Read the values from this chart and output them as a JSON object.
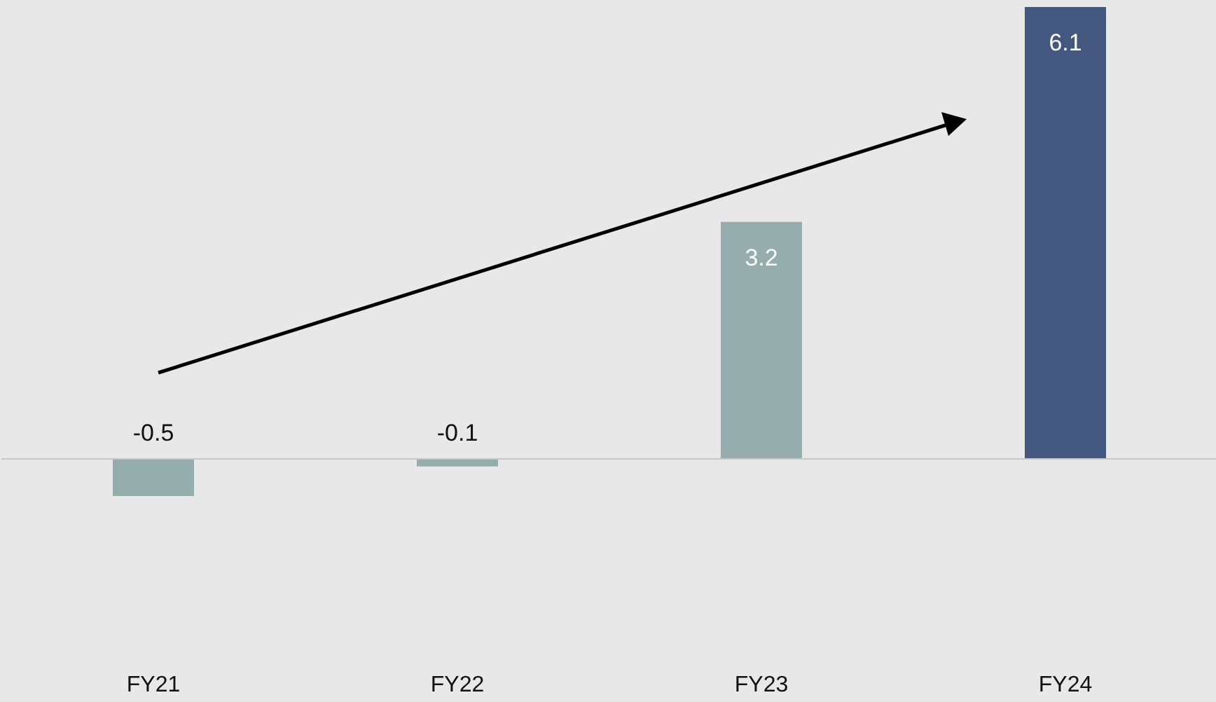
{
  "chart_data": {
    "type": "bar",
    "categories": [
      "FY21",
      "FY22",
      "FY23",
      "FY24"
    ],
    "values": [
      -0.5,
      -0.1,
      3.2,
      6.1
    ],
    "colors": [
      "#95adad",
      "#95adad",
      "#95adad",
      "#44587f"
    ],
    "data_labels": true
  }
}
